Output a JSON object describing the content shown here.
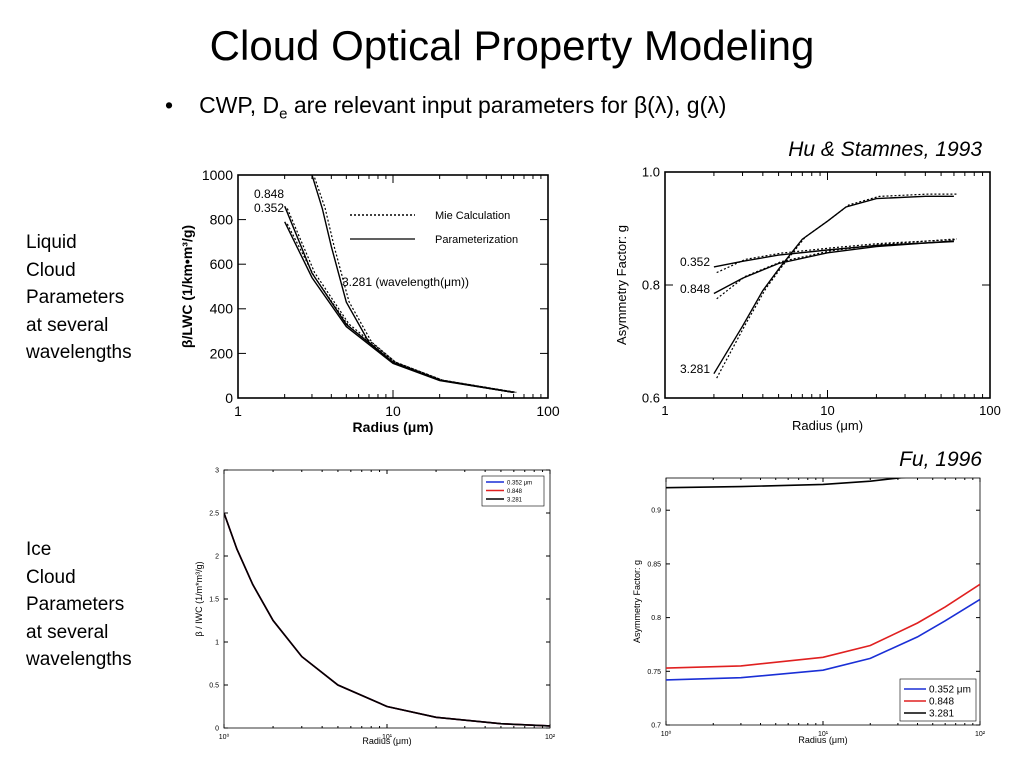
{
  "slide": {
    "title": "Cloud Optical Property Modeling",
    "bullet": {
      "symbol": "•",
      "prefix": "CWP, D",
      "subscript": "e",
      "suffix": " are relevant input parameters for β(λ), g(λ)"
    },
    "citation_top": "Hu & Stamnes, 1993",
    "citation_bottom": "Fu, 1996",
    "row_labels": {
      "liquid": [
        "Liquid",
        "Cloud",
        "Parameters",
        "at several",
        "wavelengths"
      ],
      "ice": [
        "Ice",
        "Cloud",
        "Parameters",
        "at several",
        "wavelengths"
      ]
    }
  },
  "chart_data": [
    {
      "type": "line",
      "xscale": "log",
      "xlim": [
        1,
        100
      ],
      "ylim": [
        0,
        1000
      ],
      "xticks": [
        "1",
        "10",
        "100"
      ],
      "yticks": [
        "0",
        "200",
        "400",
        "600",
        "800",
        "1000"
      ],
      "xlabel": "Radius (μm)",
      "ylabel": "β/LWC (1/km•m³/g)",
      "legend": {
        "placement": "top-right",
        "entries": [
          "Mie Calculation",
          "Parameterization"
        ],
        "styles": [
          "dotted",
          "solid"
        ]
      },
      "annotations": [
        "0.848",
        "0.352",
        "3.281 (wavelength(μm))"
      ],
      "series": [
        {
          "name": "0.848",
          "x": [
            2,
            3,
            5,
            10,
            20,
            60
          ],
          "y": [
            860,
            560,
            330,
            160,
            80,
            25
          ]
        },
        {
          "name": "0.352",
          "x": [
            2,
            3,
            5,
            10,
            20,
            60
          ],
          "y": [
            790,
            540,
            320,
            155,
            78,
            25
          ]
        },
        {
          "name": "3.281",
          "x": [
            3,
            3.5,
            4,
            5,
            7,
            10,
            20,
            60
          ],
          "y": [
            1000,
            850,
            680,
            430,
            250,
            160,
            80,
            25
          ]
        }
      ]
    },
    {
      "type": "line",
      "xscale": "log",
      "xlim": [
        1,
        100
      ],
      "ylim": [
        0.6,
        1.0
      ],
      "xticks": [
        "1",
        "10",
        "100"
      ],
      "yticks": [
        "0.6",
        "0.8",
        "1.0"
      ],
      "xlabel": "Radius (μm)",
      "ylabel": "Asymmetry Factor: g",
      "annotations": [
        "0.352",
        "0.848",
        "3.281"
      ],
      "series": [
        {
          "name": "0.352",
          "x": [
            2,
            3,
            5,
            10,
            20,
            60
          ],
          "y": [
            0.832,
            0.842,
            0.853,
            0.862,
            0.87,
            0.877
          ]
        },
        {
          "name": "0.848",
          "x": [
            2,
            3,
            5,
            10,
            20,
            60
          ],
          "y": [
            0.785,
            0.812,
            0.838,
            0.857,
            0.868,
            0.878
          ]
        },
        {
          "name": "3.281",
          "x": [
            2,
            3,
            4,
            5,
            7,
            10,
            13,
            20,
            40,
            60
          ],
          "y": [
            0.643,
            0.727,
            0.79,
            0.828,
            0.881,
            0.913,
            0.938,
            0.953,
            0.957,
            0.957
          ]
        }
      ]
    },
    {
      "type": "line",
      "xscale": "log",
      "xlim": [
        1,
        100
      ],
      "ylim": [
        0,
        3
      ],
      "xticks": [
        "10⁰",
        "10¹",
        "10²"
      ],
      "yticks": [
        "0",
        "0.5",
        "1",
        "1.5",
        "2",
        "2.5",
        "3"
      ],
      "xlabel": "Radius (μm)",
      "ylabel": "β / IWC (1/m*m³/g)",
      "legend": {
        "placement": "top-right",
        "entries": [
          "0.352 μm",
          "0.848",
          "3.281"
        ],
        "colors": [
          "#1a2fd6",
          "#e02020",
          "#000000"
        ]
      },
      "series": [
        {
          "name": "0.352 μm",
          "x": [
            1,
            1.2,
            1.5,
            2,
            3,
            5,
            10,
            20,
            50,
            100
          ],
          "y": [
            2.5,
            2.08,
            1.67,
            1.25,
            0.83,
            0.5,
            0.25,
            0.125,
            0.05,
            0.025
          ]
        },
        {
          "name": "0.848",
          "x": [
            1,
            1.2,
            1.5,
            2,
            3,
            5,
            10,
            20,
            50,
            100
          ],
          "y": [
            2.5,
            2.08,
            1.67,
            1.25,
            0.83,
            0.5,
            0.25,
            0.125,
            0.05,
            0.025
          ]
        },
        {
          "name": "3.281",
          "x": [
            1,
            1.2,
            1.5,
            2,
            3,
            5,
            10,
            20,
            50,
            100
          ],
          "y": [
            2.5,
            2.08,
            1.67,
            1.25,
            0.83,
            0.5,
            0.25,
            0.125,
            0.05,
            0.025
          ]
        }
      ]
    },
    {
      "type": "line",
      "xscale": "log",
      "xlim": [
        1,
        100
      ],
      "ylim": [
        0.7,
        0.93
      ],
      "xticks": [
        "10⁰",
        "10¹",
        "10²"
      ],
      "yticks": [
        "0.7",
        "0.75",
        "0.8",
        "0.85",
        "0.9"
      ],
      "xlabel": "Radius (μm)",
      "ylabel": "Asymmetry Factor: g",
      "legend": {
        "placement": "bottom-right",
        "entries": [
          "0.352 μm",
          "0.848",
          "3.281"
        ],
        "colors": [
          "#1a2fd6",
          "#e02020",
          "#000000"
        ]
      },
      "series": [
        {
          "name": "0.352 μm",
          "x": [
            1,
            3,
            10,
            20,
            40,
            60,
            100
          ],
          "y": [
            0.742,
            0.744,
            0.751,
            0.762,
            0.782,
            0.797,
            0.817
          ]
        },
        {
          "name": "0.848",
          "x": [
            1,
            3,
            10,
            20,
            40,
            60,
            100
          ],
          "y": [
            0.753,
            0.755,
            0.763,
            0.774,
            0.795,
            0.81,
            0.831
          ]
        },
        {
          "name": "3.281",
          "x": [
            1,
            3,
            10,
            20,
            40,
            60,
            100
          ],
          "y": [
            0.921,
            0.922,
            0.924,
            0.927,
            0.932,
            0.933,
            0.932
          ]
        }
      ]
    }
  ]
}
